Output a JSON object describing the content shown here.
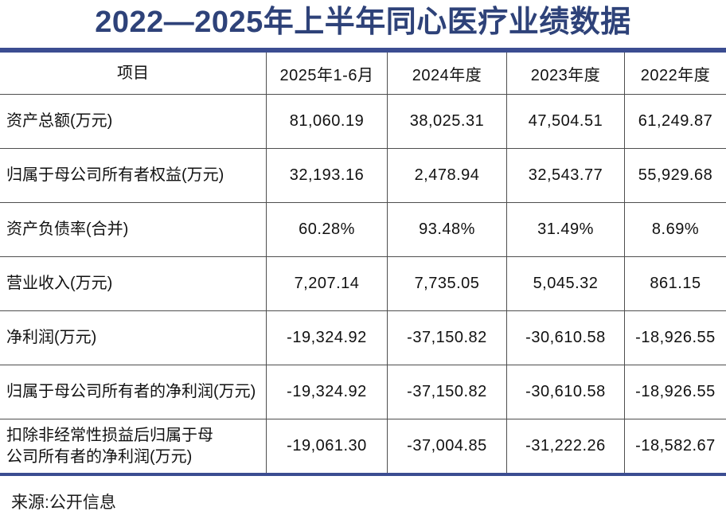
{
  "title": "2022—2025年上半年同心医疗业绩数据",
  "source_note": "来源:公开信息",
  "colors": {
    "title_blue": "#2e4279",
    "accent_line_blue": "#3b4d91",
    "grid_gray": "#4e4e4e",
    "text_black": "#111111"
  },
  "chart_data": {
    "type": "table",
    "title": "2022—2025年上半年同心医疗业绩数据",
    "columns": [
      "项目",
      "2025年1-6月",
      "2024年度",
      "2023年度",
      "2022年度"
    ],
    "rows": [
      {
        "label": "资产总额(万元)",
        "values": [
          "81,060.19",
          "38,025.31",
          "47,504.51",
          "61,249.87"
        ]
      },
      {
        "label": "归属于母公司所有者权益(万元)",
        "values": [
          "32,193.16",
          "2,478.94",
          "32,543.77",
          "55,929.68"
        ]
      },
      {
        "label": "资产负债率(合并)",
        "values": [
          "60.28%",
          "93.48%",
          "31.49%",
          "8.69%"
        ]
      },
      {
        "label": "营业收入(万元)",
        "values": [
          "7,207.14",
          "7,735.05",
          "5,045.32",
          "861.15"
        ]
      },
      {
        "label": "净利润(万元)",
        "values": [
          "-19,324.92",
          "-37,150.82",
          "-30,610.58",
          "-18,926.55"
        ]
      },
      {
        "label": "归属于母公司所有者的净利润(万元)",
        "values": [
          "-19,324.92",
          "-37,150.82",
          "-30,610.58",
          "-18,926.55"
        ]
      },
      {
        "label": "扣除非经常性损益后归属于母\n公司所有者的净利润(万元)",
        "values": [
          "-19,061.30",
          "-37,004.85",
          "-31,222.26",
          "-18,582.67"
        ]
      }
    ]
  }
}
